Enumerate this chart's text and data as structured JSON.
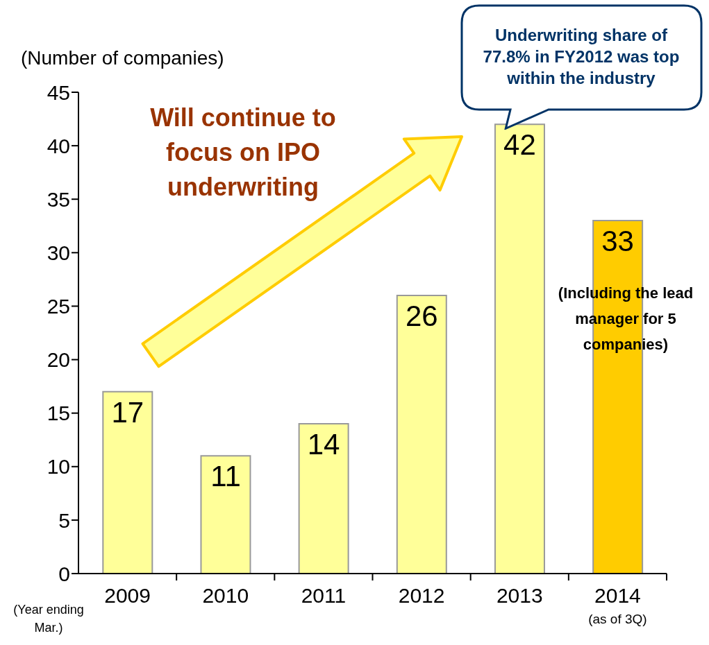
{
  "chart_data": {
    "type": "bar",
    "ylabel": "(Number of companies)",
    "xlabel": "(Year ending Mar.)",
    "categories": [
      "2009",
      "2010",
      "2011",
      "2012",
      "2013",
      "2014 (as of 3Q)"
    ],
    "values": [
      17,
      11,
      14,
      26,
      42,
      33
    ],
    "colors": [
      "#ffff99",
      "#ffff99",
      "#ffff99",
      "#ffff99",
      "#ffff99",
      "#ffcc00"
    ],
    "ylim": [
      0,
      45
    ],
    "yticks": [
      0,
      5,
      10,
      15,
      20,
      25,
      30,
      35,
      40,
      45
    ],
    "grid": false,
    "legend": false,
    "data_labels": true,
    "annotations": [
      "Will continue to focus on IPO underwriting",
      {
        "text": "Underwriting share of 77.8% in FY2012 was top within the industry",
        "x": "2013",
        "y": 42
      },
      "(Including the lead manager for 5 companies)"
    ]
  }
}
